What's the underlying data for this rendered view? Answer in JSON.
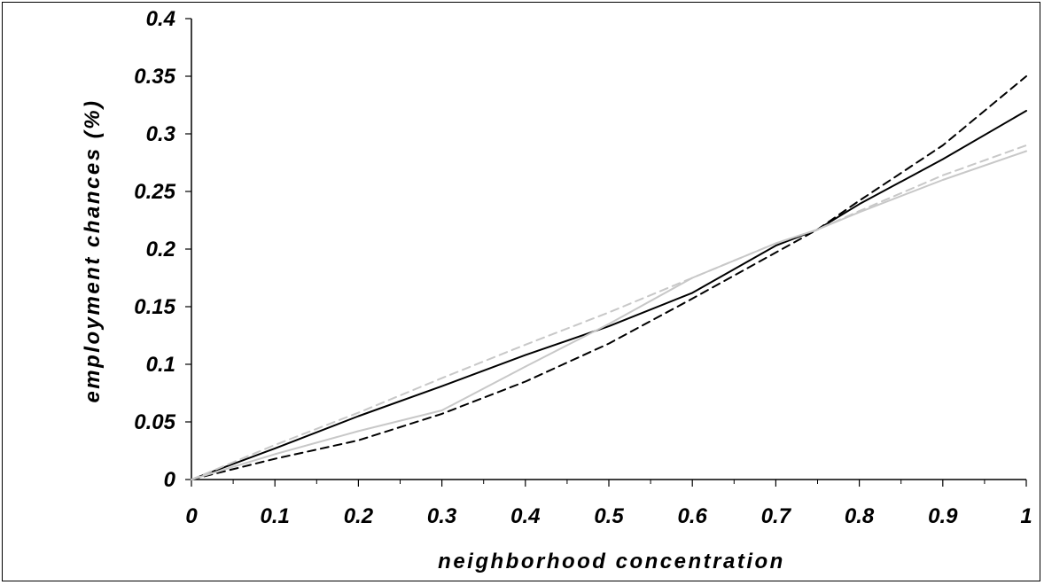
{
  "chart_data": {
    "type": "line",
    "title": "",
    "xlabel": "neighborhood concentration",
    "ylabel": "employment chances (%)",
    "xlim": [
      0,
      1
    ],
    "ylim": [
      0,
      0.4
    ],
    "x_ticks": [
      0,
      0.1,
      0.2,
      0.3,
      0.4,
      0.5,
      0.6,
      0.7,
      0.8,
      0.9,
      1
    ],
    "x_tick_labels": [
      "0",
      "0.1",
      "0.2",
      "0.3",
      "0.4",
      "0.5",
      "0.6",
      "0.7",
      "0.8",
      "0.9",
      "1"
    ],
    "y_ticks": [
      0,
      0.05,
      0.1,
      0.15,
      0.2,
      0.25,
      0.3,
      0.35,
      0.4
    ],
    "y_tick_labels": [
      "0",
      "0.05",
      "0.1",
      "0.15",
      "0.2",
      "0.25",
      "0.3",
      "0.35",
      "0.4"
    ],
    "grid": false,
    "legend": "none",
    "x": [
      0,
      0.1,
      0.2,
      0.3,
      0.4,
      0.5,
      0.6,
      0.7,
      0.75,
      0.8,
      0.9,
      1
    ],
    "series": [
      {
        "color": "#000000",
        "dash": "solid",
        "values": [
          0,
          0.027,
          0.055,
          0.081,
          0.108,
          0.133,
          0.162,
          0.203,
          0.217,
          0.239,
          0.278,
          0.32
        ]
      },
      {
        "color": "#000000",
        "dash": "dashed",
        "values": [
          0,
          0.018,
          0.034,
          0.057,
          0.085,
          0.118,
          0.157,
          0.197,
          0.217,
          0.242,
          0.29,
          0.35
        ]
      },
      {
        "color": "#c8c8c8",
        "dash": "solid",
        "values": [
          0,
          0.022,
          0.042,
          0.06,
          0.098,
          0.135,
          0.175,
          0.205,
          0.217,
          0.232,
          0.26,
          0.285
        ]
      },
      {
        "color": "#c8c8c8",
        "dash": "dashed",
        "values": [
          0,
          0.03,
          0.058,
          0.088,
          0.117,
          0.145,
          0.175,
          0.205,
          0.217,
          0.233,
          0.264,
          0.29
        ]
      }
    ]
  }
}
